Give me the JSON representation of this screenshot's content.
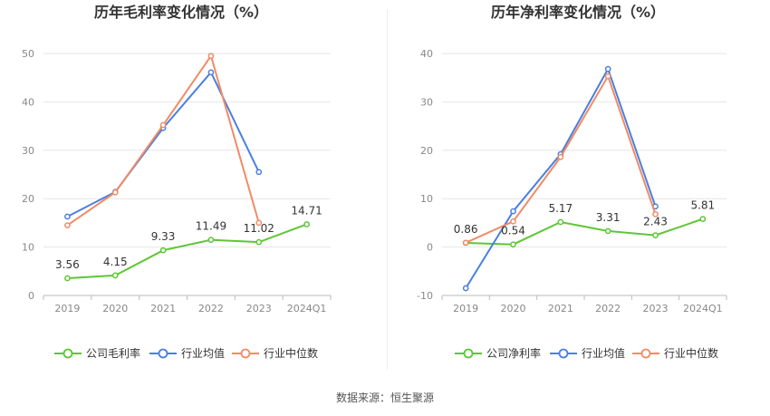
{
  "colors": {
    "company": "#5ec635",
    "avg": "#4a7fe0",
    "median": "#f08b66",
    "grid": "#e6e6e6",
    "axis": "#bbbbbb"
  },
  "legend": {
    "company_gross": "公司毛利率",
    "company_net": "公司净利率",
    "avg": "行业均值",
    "median": "行业中位数"
  },
  "source": "数据来源：恒生聚源",
  "chart_data": [
    {
      "type": "line",
      "title": "历年毛利率变化情况（%）",
      "categories": [
        "2019",
        "2020",
        "2021",
        "2022",
        "2023",
        "2024Q1"
      ],
      "ylim": [
        0,
        50
      ],
      "yticks": [
        0,
        10,
        20,
        30,
        40,
        50
      ],
      "grid": true,
      "legend_position": "bottom",
      "series": [
        {
          "name": "公司毛利率",
          "role": "company",
          "values": [
            3.56,
            4.15,
            9.33,
            11.49,
            11.02,
            14.71
          ],
          "labels": [
            "3.56",
            "4.15",
            "9.33",
            "11.49",
            "11.02",
            "14.71"
          ]
        },
        {
          "name": "行业均值",
          "role": "avg",
          "values": [
            16.3,
            21.4,
            34.6,
            46.1,
            25.5,
            null
          ]
        },
        {
          "name": "行业中位数",
          "role": "median",
          "values": [
            14.5,
            21.3,
            35.2,
            49.5,
            15.0,
            null
          ]
        }
      ]
    },
    {
      "type": "line",
      "title": "历年净利率变化情况（%）",
      "categories": [
        "2019",
        "2020",
        "2021",
        "2022",
        "2023",
        "2024Q1"
      ],
      "ylim": [
        -10,
        40
      ],
      "yticks": [
        -10,
        0,
        10,
        20,
        30,
        40
      ],
      "grid": true,
      "legend_position": "bottom",
      "series": [
        {
          "name": "公司净利率",
          "role": "company",
          "values": [
            0.86,
            0.54,
            5.17,
            3.31,
            2.43,
            5.81
          ],
          "labels": [
            "0.86",
            "0.54",
            "5.17",
            "3.31",
            "2.43",
            "5.81"
          ]
        },
        {
          "name": "行业均值",
          "role": "avg",
          "values": [
            -8.5,
            7.4,
            19.2,
            36.8,
            8.4,
            null
          ]
        },
        {
          "name": "行业中位数",
          "role": "median",
          "values": [
            0.9,
            5.3,
            18.6,
            35.3,
            6.8,
            null
          ]
        }
      ]
    }
  ]
}
